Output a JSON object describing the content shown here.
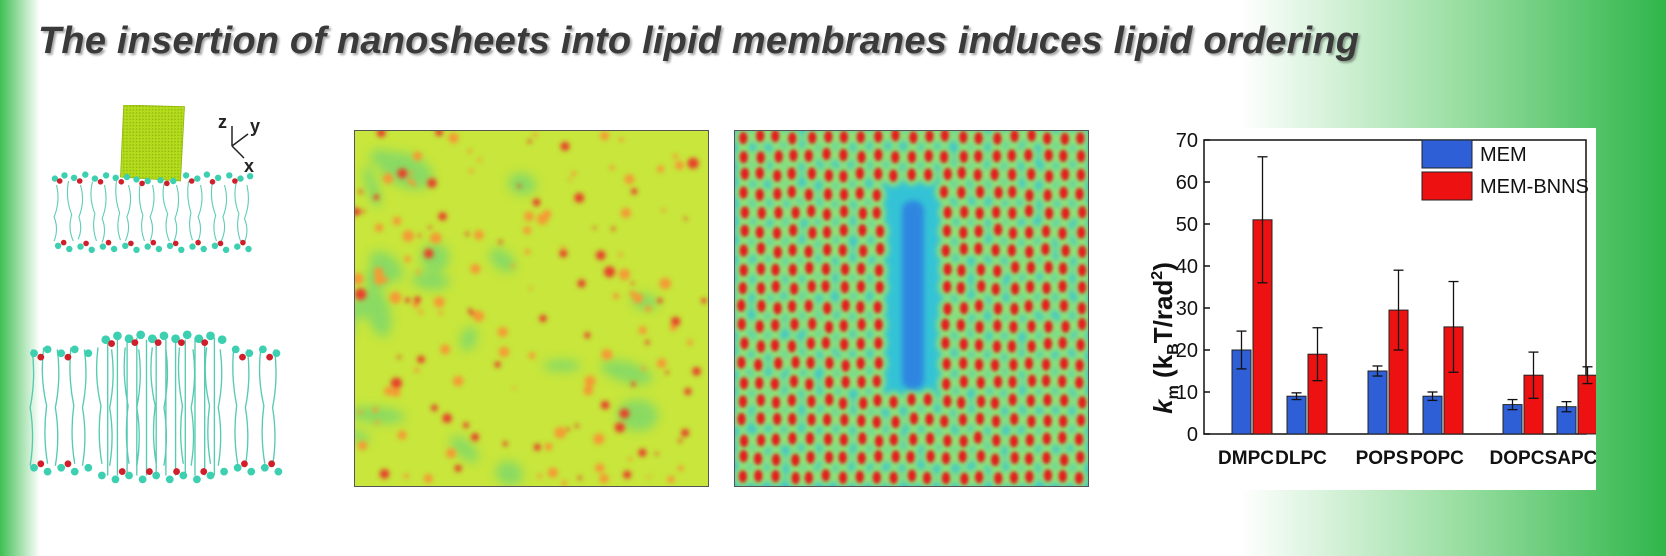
{
  "title": "The insertion of nanosheets into lipid membranes induces lipid ordering",
  "axes_labels": {
    "z": "z",
    "y": "y",
    "x": "x"
  },
  "colors": {
    "MEM": "#2f5fd6",
    "MEM-BNNS": "#ee1111",
    "background_green": "#2fb64a",
    "heatmap_base": "#c8e63c"
  },
  "panels": {
    "membrane_with_nanosheet": "membrane-with-nanosheet",
    "membrane_bilayer": "membrane-bilayer",
    "heatmap_disordered": "heatmap-disordered",
    "heatmap_ordered": "heatmap-ordered"
  },
  "chart_data": {
    "type": "bar",
    "categories": [
      "DMPC",
      "DLPC",
      "POPS",
      "POPC",
      "DOPC",
      "SAPC"
    ],
    "series": [
      {
        "name": "MEM",
        "values": [
          20,
          9,
          15,
          9,
          7,
          6.5
        ],
        "errors": [
          4.5,
          0.8,
          1.2,
          1.0,
          1.2,
          1.2
        ]
      },
      {
        "name": "MEM-BNNS",
        "values": [
          51,
          19,
          29.5,
          25.5,
          14,
          14
        ],
        "errors": [
          15,
          6.3,
          9.5,
          10.8,
          5.5,
          2.0
        ]
      }
    ],
    "ylabel_main": "k",
    "ylabel_sub": "m",
    "ylabel_open": " (k",
    "ylabel_b": "B",
    "ylabel_mid": "T/rad",
    "ylabel_sup": "2",
    "ylabel_close": ")",
    "ylim": [
      0,
      70
    ],
    "yticks": [
      "0",
      "10",
      "20",
      "30",
      "40",
      "50",
      "60",
      "70"
    ],
    "legend_position": "top-right"
  }
}
